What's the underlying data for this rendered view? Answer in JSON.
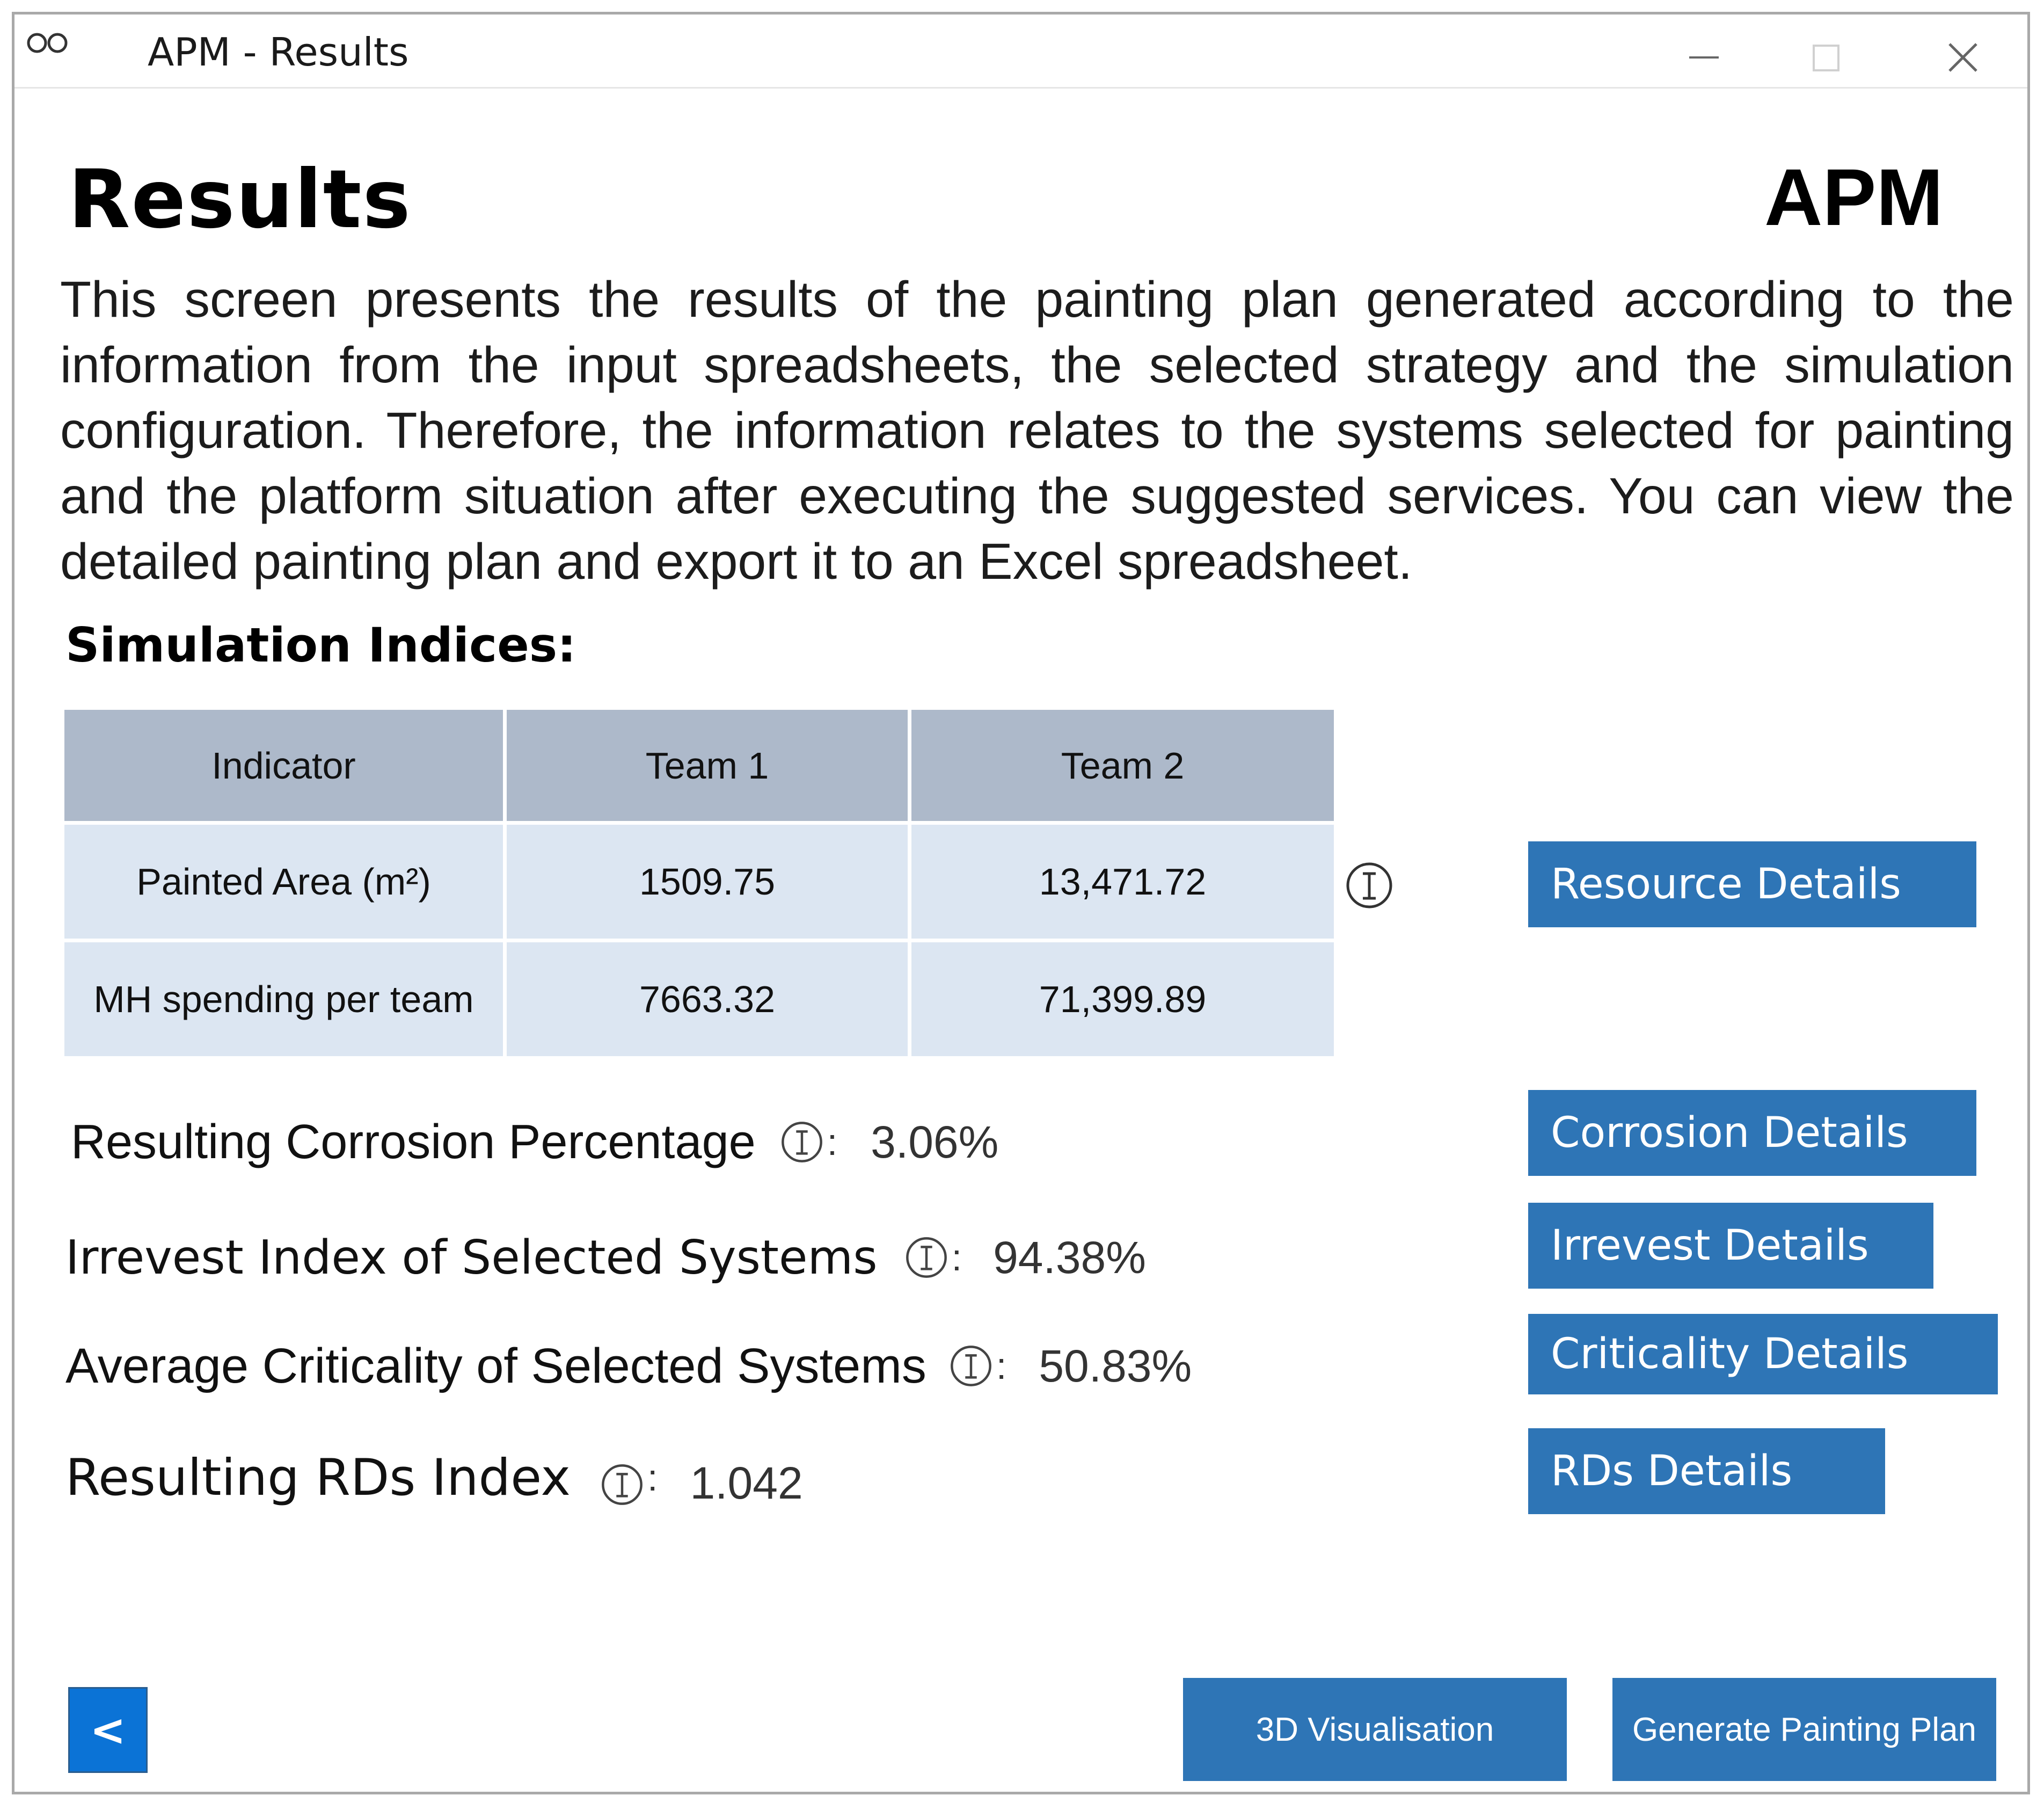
{
  "window": {
    "title": "APM - Results",
    "app_icon": "apm-logo-icon",
    "controls": [
      "minimize-icon",
      "maximize-icon",
      "close-icon"
    ]
  },
  "header": {
    "title": "Results",
    "brand": "APM"
  },
  "description": "This screen presents the results of the painting plan generated according to the information from the input spreadsheets, the selected strategy and the simulation configuration. Therefore, the information relates to the systems selected for painting and the platform situation after executing the suggested services. You can view the detailed painting plan and export it to an Excel spreadsheet.",
  "simulation": {
    "section_title": "Simulation Indices:",
    "table": {
      "headers": [
        "Indicator",
        "Team 1",
        "Team 2"
      ],
      "rows": [
        [
          "Painted Area (m²)",
          "1509.75",
          "13,471.72"
        ],
        [
          "MH spending per team",
          "7663.32",
          "71,399.89"
        ]
      ]
    }
  },
  "metrics": [
    {
      "label": "Resulting Corrosion Percentage",
      "colon": ":",
      "value": "3.06%"
    },
    {
      "label": "Irrevest Index of Selected Systems",
      "colon": ":",
      "value": "94.38%"
    },
    {
      "label": "Average Criticality of Selected Systems",
      "colon": ":",
      "value": "50.83%"
    },
    {
      "label": "Resulting RDs Index",
      "colon": ":",
      "value": "1.042"
    }
  ],
  "detail_buttons": {
    "resource": "Resource Details",
    "corrosion": "Corrosion Details",
    "irrevest": "Irrevest Details",
    "criticality": "Criticality Details",
    "rds": "RDs Details"
  },
  "footer": {
    "back": "<",
    "visualisation": "3D Visualisation",
    "generate": "Generate Painting Plan"
  },
  "colors": {
    "button_blue": "#2e75b6",
    "back_blue": "#0b73d6",
    "table_header": "#adb9ca",
    "table_cell": "#dce6f2"
  }
}
